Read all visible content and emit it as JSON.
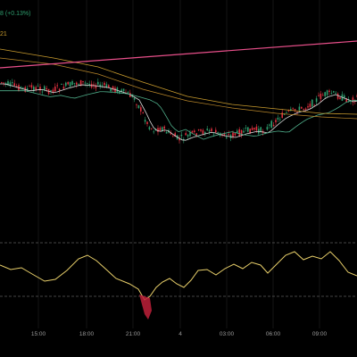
{
  "legend": {
    "change_label": "8 (+0.13%)",
    "ma_label": "21"
  },
  "time_axis": {
    "labels": [
      "15:00",
      "18:00",
      "21:00",
      "4",
      "03:00",
      "06:00",
      "09:00"
    ]
  },
  "colors": {
    "background": "#000000",
    "up_candle": "#2e9e6e",
    "down_candle": "#e0303f",
    "trendline": "#e84f8a",
    "ma_fast": "#d8d8d8",
    "ma_mid": "#4fae8a",
    "ma_slow": "#c89b2e",
    "ma_long": "#b8862a",
    "oscillator": "#e8cf6a",
    "oscillator_band": "#8a8a8a",
    "oscillator_spike": "#c0203a",
    "grid": "#141414",
    "axis_text": "#9a9a9a"
  }
}
